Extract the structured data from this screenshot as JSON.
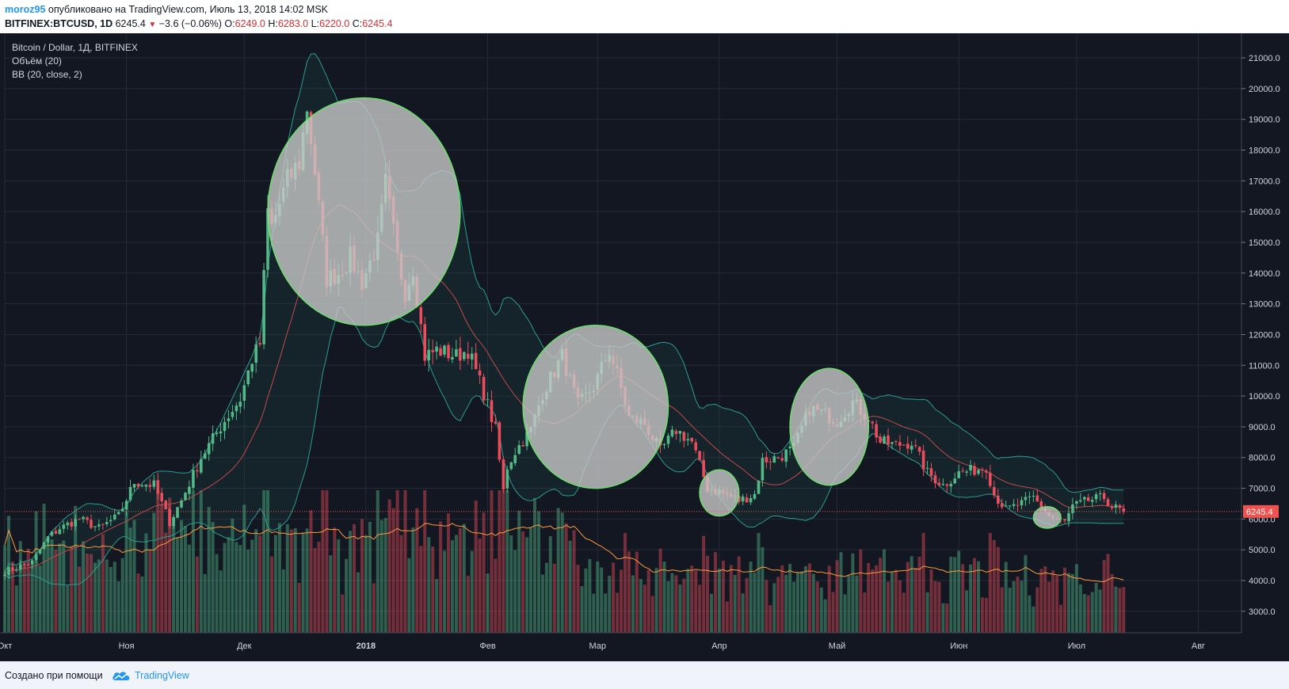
{
  "header": {
    "author": "moroz95",
    "published_text": "опубликовано на TradingView.com, Июль 13, 2018 14:02 MSK",
    "symbol": "BITFINEX:BTCUSD, 1D",
    "last": "6245.4",
    "change": "−3.6 (−0.06%)",
    "o_label": "O:",
    "o_value": "6249.0",
    "h_label": "H:",
    "h_value": "6283.0",
    "l_label": "L:",
    "l_value": "6220.0",
    "c_label": "C:",
    "c_value": "6245.4"
  },
  "legend": {
    "title": "Bitcoin / Dollar, 1Д, BITFINEX",
    "volume": "Объём (20)",
    "bb": "BB (20, close, 2)"
  },
  "footer": {
    "made_with": "Создано при помощи",
    "brand": "TradingView"
  },
  "colors": {
    "background": "#131722",
    "up": "#53b987",
    "down": "#eb4d5c",
    "circle_fill": "#c8c8c8",
    "circle_stroke": "#6ce06c",
    "price_label": "#ef5350"
  },
  "chart_data": {
    "type": "candlestick",
    "title": "Bitcoin / Dollar, 1Д, BITFINEX",
    "indicators": [
      "Объём (20)",
      "BB (20, close, 2)"
    ],
    "ylim": [
      2300,
      21800
    ],
    "y_ticks": [
      "3000.0",
      "4000.0",
      "5000.0",
      "6000.0",
      "7000.0",
      "8000.0",
      "9000.0",
      "10000.0",
      "11000.0",
      "12000.0",
      "13000.0",
      "14000.0",
      "15000.0",
      "16000.0",
      "17000.0",
      "18000.0",
      "19000.0",
      "20000.0",
      "21000.0"
    ],
    "x_ticks": [
      {
        "label": "Окт",
        "date": "2017-10-01"
      },
      {
        "label": "Ноя",
        "date": "2017-11-01"
      },
      {
        "label": "Дек",
        "date": "2017-12-01"
      },
      {
        "label": "2018",
        "date": "2018-01-01"
      },
      {
        "label": "Фев",
        "date": "2018-02-01"
      },
      {
        "label": "Мар",
        "date": "2018-03-01"
      },
      {
        "label": "Апр",
        "date": "2018-04-01"
      },
      {
        "label": "Май",
        "date": "2018-05-01"
      },
      {
        "label": "Июн",
        "date": "2018-06-01"
      },
      {
        "label": "Июл",
        "date": "2018-07-01"
      },
      {
        "label": "Авг",
        "date": "2018-08-01"
      }
    ],
    "x_range": [
      "2017-10-01",
      "2018-08-12"
    ],
    "last_price": "6245.4",
    "close_path": [
      [
        "2017-10-01",
        4300
      ],
      [
        "2017-10-08",
        4600
      ],
      [
        "2017-10-12",
        5400
      ],
      [
        "2017-10-15",
        5700
      ],
      [
        "2017-10-20",
        6000
      ],
      [
        "2017-10-25",
        5700
      ],
      [
        "2017-10-30",
        6100
      ],
      [
        "2017-11-03",
        7200
      ],
      [
        "2017-11-08",
        7100
      ],
      [
        "2017-11-12",
        5900
      ],
      [
        "2017-11-15",
        6600
      ],
      [
        "2017-11-20",
        8000
      ],
      [
        "2017-11-26",
        9200
      ],
      [
        "2017-11-30",
        9900
      ],
      [
        "2017-12-03",
        11200
      ],
      [
        "2017-12-05",
        11700
      ],
      [
        "2017-12-07",
        16000
      ],
      [
        "2017-12-08",
        15500
      ],
      [
        "2017-12-12",
        17000
      ],
      [
        "2017-12-15",
        17600
      ],
      [
        "2017-12-17",
        19400
      ],
      [
        "2017-12-19",
        17300
      ],
      [
        "2017-12-22",
        13800
      ],
      [
        "2017-12-25",
        14000
      ],
      [
        "2017-12-28",
        14500
      ],
      [
        "2017-12-31",
        13700
      ],
      [
        "2018-01-04",
        15000
      ],
      [
        "2018-01-06",
        16900
      ],
      [
        "2018-01-09",
        14500
      ],
      [
        "2018-01-11",
        13400
      ],
      [
        "2018-01-13",
        14200
      ],
      [
        "2018-01-16",
        11300
      ],
      [
        "2018-01-19",
        11500
      ],
      [
        "2018-01-24",
        11300
      ],
      [
        "2018-01-27",
        11500
      ],
      [
        "2018-01-31",
        10100
      ],
      [
        "2018-02-03",
        8900
      ],
      [
        "2018-02-05",
        6900
      ],
      [
        "2018-02-06",
        7700
      ],
      [
        "2018-02-08",
        8200
      ],
      [
        "2018-02-12",
        8900
      ],
      [
        "2018-02-15",
        10100
      ],
      [
        "2018-02-20",
        11300
      ],
      [
        "2018-02-24",
        9700
      ],
      [
        "2018-02-28",
        10300
      ],
      [
        "2018-03-04",
        11500
      ],
      [
        "2018-03-06",
        10700
      ],
      [
        "2018-03-09",
        9300
      ],
      [
        "2018-03-13",
        9100
      ],
      [
        "2018-03-17",
        8200
      ],
      [
        "2018-03-21",
        8900
      ],
      [
        "2018-03-25",
        8500
      ],
      [
        "2018-03-29",
        7000
      ],
      [
        "2018-04-01",
        6900
      ],
      [
        "2018-04-06",
        6600
      ],
      [
        "2018-04-10",
        6800
      ],
      [
        "2018-04-12",
        7900
      ],
      [
        "2018-04-16",
        8000
      ],
      [
        "2018-04-20",
        8300
      ],
      [
        "2018-04-24",
        9600
      ],
      [
        "2018-04-28",
        9400
      ],
      [
        "2018-05-01",
        9200
      ],
      [
        "2018-05-05",
        9800
      ],
      [
        "2018-05-09",
        9300
      ],
      [
        "2018-05-12",
        8500
      ],
      [
        "2018-05-16",
        8400
      ],
      [
        "2018-05-20",
        8500
      ],
      [
        "2018-05-24",
        7500
      ],
      [
        "2018-05-28",
        7100
      ],
      [
        "2018-06-01",
        7500
      ],
      [
        "2018-06-05",
        7600
      ],
      [
        "2018-06-08",
        7700
      ],
      [
        "2018-06-10",
        6800
      ],
      [
        "2018-06-13",
        6300
      ],
      [
        "2018-06-17",
        6500
      ],
      [
        "2018-06-20",
        6700
      ],
      [
        "2018-06-24",
        6100
      ],
      [
        "2018-06-28",
        5900
      ],
      [
        "2018-06-30",
        6400
      ],
      [
        "2018-07-04",
        6600
      ],
      [
        "2018-07-08",
        6700
      ],
      [
        "2018-07-10",
        6400
      ],
      [
        "2018-07-13",
        6245.4
      ]
    ],
    "annotations": [
      {
        "shape": "circle",
        "from": "2017-12-07",
        "to": "2018-01-25",
        "price_high": 19700,
        "price_low": 12300
      },
      {
        "shape": "circle",
        "from": "2018-02-10",
        "to": "2018-03-19",
        "price_high": 12300,
        "price_low": 7000
      },
      {
        "shape": "circle",
        "from": "2018-03-27",
        "to": "2018-04-06",
        "price_high": 7600,
        "price_low": 6100
      },
      {
        "shape": "circle",
        "from": "2018-04-19",
        "to": "2018-05-09",
        "price_high": 10900,
        "price_low": 7100
      },
      {
        "shape": "circle",
        "from": "2018-06-20",
        "to": "2018-06-27",
        "price_high": 6400,
        "price_low": 5700
      }
    ]
  }
}
